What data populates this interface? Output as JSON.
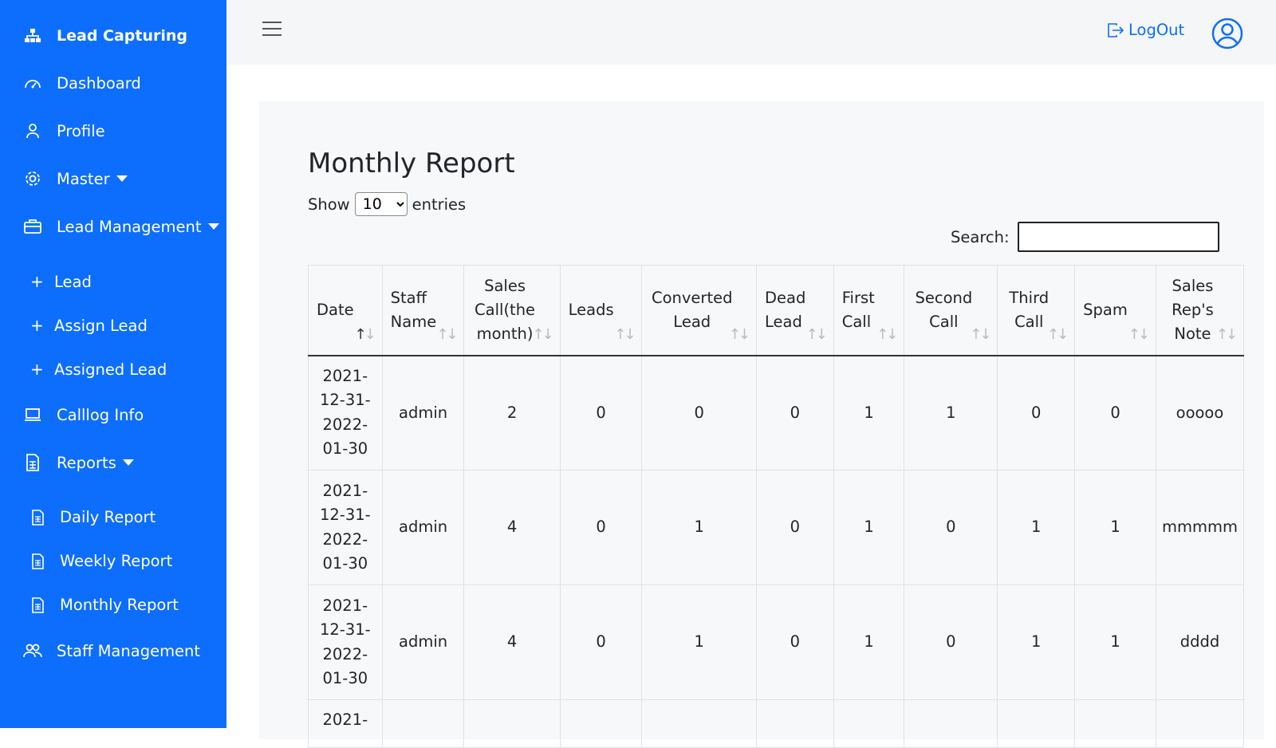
{
  "sidebar": {
    "brand": "Lead Capturing",
    "items": {
      "dashboard": "Dashboard",
      "profile": "Profile",
      "master": "Master",
      "lead_management": "Lead Management",
      "lead": "Lead",
      "assign_lead": "Assign Lead",
      "assigned_lead": "Assigned Lead",
      "calllog_info": "Calllog Info",
      "reports": "Reports",
      "daily_report": "Daily Report",
      "weekly_report": "Weekly Report",
      "monthly_report": "Monthly Report",
      "staff_management": "Staff Management"
    }
  },
  "header": {
    "logout_label": "LogOut"
  },
  "main": {
    "title": "Monthly Report",
    "show_label": "Show",
    "entries_label": "entries",
    "page_size": "10",
    "search_label": "Search:",
    "search_value": ""
  },
  "table": {
    "columns": {
      "date": "Date",
      "staff_name": "Staff Name",
      "sales_call": "Sales Call(the month)",
      "leads": "Leads",
      "converted_lead": "Converted Lead",
      "dead_lead": "Dead Lead",
      "first_call": "First Call",
      "second_call": "Second Call",
      "third_call": "Third Call",
      "spam": "Spam",
      "note": "Sales Rep's Note"
    },
    "rows": [
      {
        "date": "2021-12-31-2022-01-30",
        "staff": "admin",
        "sales_call": "2",
        "leads": "0",
        "converted": "0",
        "dead": "0",
        "first": "1",
        "second": "1",
        "third": "0",
        "spam": "0",
        "note": "ooooo"
      },
      {
        "date": "2021-12-31-2022-01-30",
        "staff": "admin",
        "sales_call": "4",
        "leads": "0",
        "converted": "1",
        "dead": "0",
        "first": "1",
        "second": "0",
        "third": "1",
        "spam": "1",
        "note": "mmmmm"
      },
      {
        "date": "2021-12-31-2022-01-30",
        "staff": "admin",
        "sales_call": "4",
        "leads": "0",
        "converted": "1",
        "dead": "0",
        "first": "1",
        "second": "0",
        "third": "1",
        "spam": "1",
        "note": "dddd"
      },
      {
        "date": "2021-"
      }
    ]
  }
}
